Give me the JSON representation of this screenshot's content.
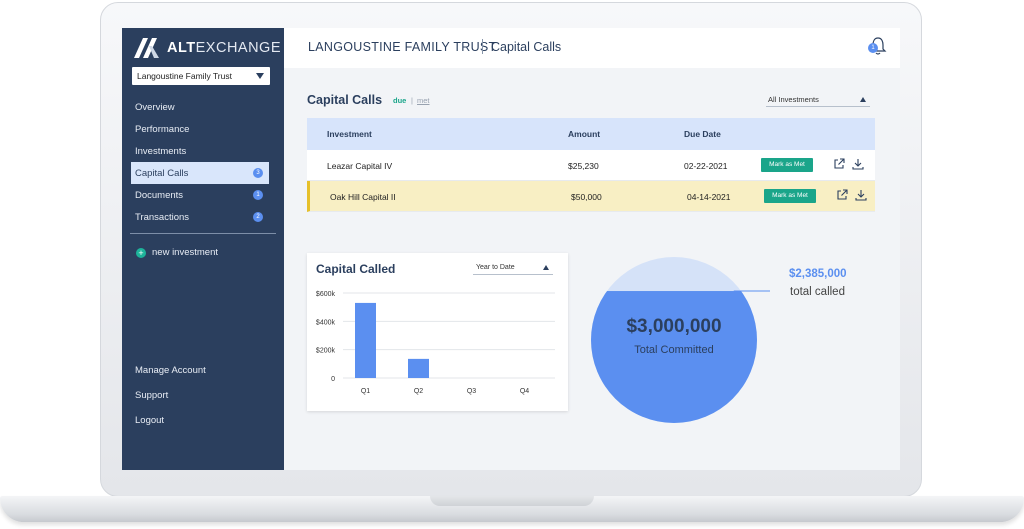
{
  "app": {
    "logo_alt": "ALT",
    "logo_exchange": "EXCHANGE",
    "trust_select": "Langoustine Family Trust"
  },
  "sidebar": {
    "items": [
      {
        "label": "Overview",
        "badge": null
      },
      {
        "label": "Performance",
        "badge": null
      },
      {
        "label": "Investments",
        "badge": null
      },
      {
        "label": "Capital Calls",
        "badge": "3",
        "active": true
      },
      {
        "label": "Documents",
        "badge": "1"
      },
      {
        "label": "Transactions",
        "badge": "2"
      }
    ],
    "new_investment": "new investment",
    "bottom": [
      "Manage Account",
      "Support",
      "Logout"
    ]
  },
  "header": {
    "trust": "LANGOUSTINE FAMILY TRUST",
    "page": "Capital Calls",
    "notification_count": "1"
  },
  "capital_calls": {
    "title": "Capital Calls",
    "tab_due": "due",
    "tab_sep": "|",
    "tab_met": "met",
    "filter": "All Investments",
    "columns": [
      "Investment",
      "Amount",
      "Due Date"
    ],
    "rows": [
      {
        "investment": "Leazar Capital IV",
        "amount": "$25,230",
        "due": "02-22-2021",
        "action": "Mark as Met",
        "highlighted": false
      },
      {
        "investment": "Oak Hill Capital II",
        "amount": "$50,000",
        "due": "04-14-2021",
        "action": "Mark as Met",
        "highlighted": true
      }
    ]
  },
  "capital_called": {
    "title": "Capital Called",
    "filter": "Year to Date"
  },
  "chart_data": {
    "type": "bar",
    "categories": [
      "Q1",
      "Q2",
      "Q3",
      "Q4"
    ],
    "values": [
      530000,
      135000,
      0,
      0
    ],
    "ylim": [
      0,
      600000
    ],
    "yticks": [
      "0",
      "$200k",
      "$400k",
      "$600k"
    ],
    "grid": true,
    "color": "#5b8ff0"
  },
  "commitment": {
    "total": "$3,000,000",
    "total_label": "Total Committed",
    "called": "$2,385,000",
    "called_label": "total called",
    "called_fraction": 0.795,
    "color_called": "#5b8ff0",
    "color_remaining": "#d5e2f8"
  },
  "colors": {
    "sidebar": "#2b3f5e",
    "accent": "#1aa58a",
    "highlight": "#f8efc4"
  }
}
